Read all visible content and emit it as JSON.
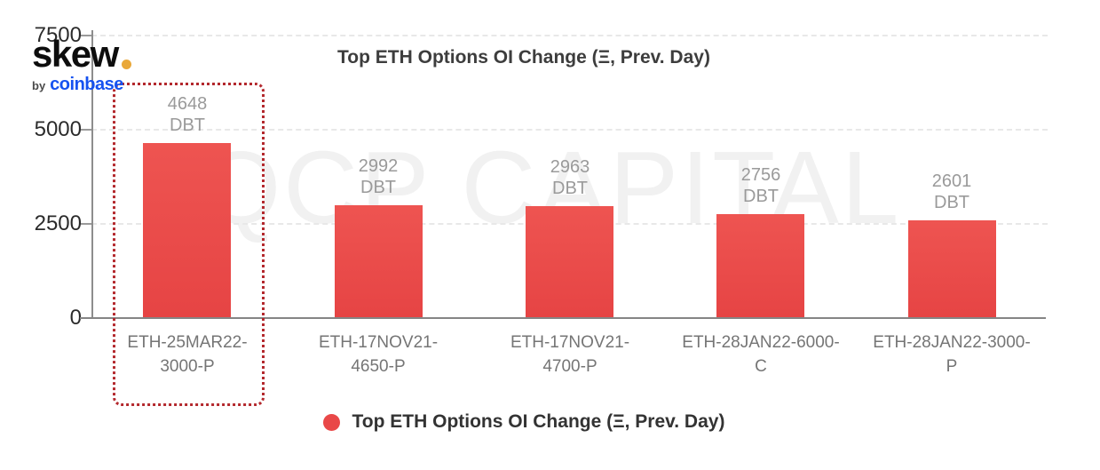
{
  "brand": {
    "logo_text": "skew",
    "byline_prefix": "by",
    "byline_brand": "coinbase"
  },
  "watermark": "QCP CAPITAL",
  "colors": {
    "bar_red": "#e94848",
    "legend_red": "#e94848",
    "highlight_red": "#b3282d",
    "coinbase_blue": "#1652f0",
    "logo_dot_orange": "#e9a83a"
  },
  "chart_data": {
    "type": "bar",
    "title": "Top ETH Options OI Change (Ξ, Prev. Day)",
    "value_unit": "DBT",
    "categories": [
      "ETH-25MAR22-3000-P",
      "ETH-17NOV21-4650-P",
      "ETH-17NOV21-4700-P",
      "ETH-28JAN22-6000-C",
      "ETH-28JAN22-3000-P"
    ],
    "values": [
      4648,
      2992,
      2963,
      2756,
      2601
    ],
    "ylim": [
      0,
      7500
    ],
    "yticks": [
      0,
      2500,
      5000,
      7500
    ],
    "grid": "horizontal-dashed",
    "legend": {
      "label": "Top ETH Options OI Change (Ξ, Prev. Day)",
      "position": "bottom",
      "marker": "circle"
    },
    "highlight": {
      "category": "ETH-25MAR22-3000-P",
      "index": 0,
      "style": "red-dotted-box"
    }
  }
}
